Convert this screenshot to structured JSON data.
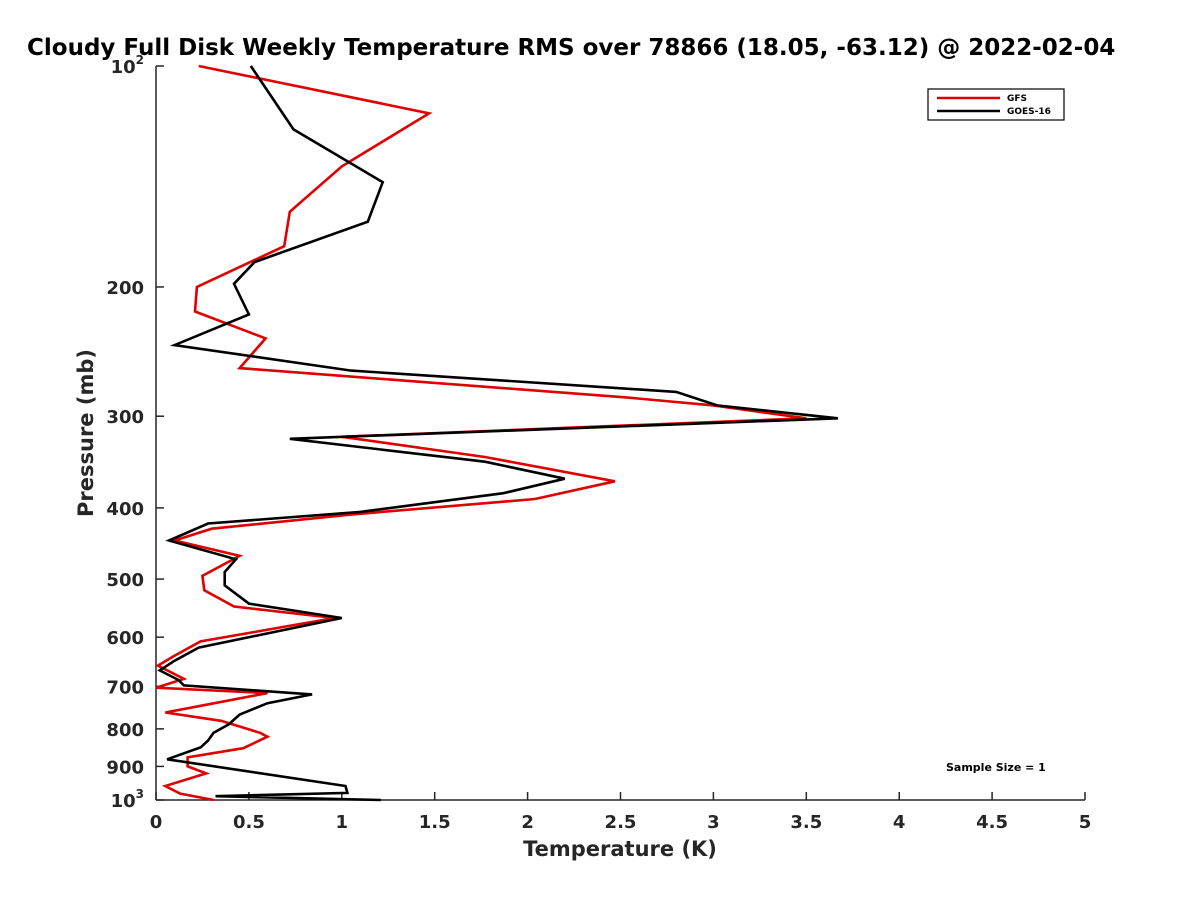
{
  "chart_data": {
    "type": "line",
    "title": "Cloudy Full Disk Weekly Temperature RMS over 78866 (18.05, -63.12) @ 2022-02-04",
    "xlabel": "Temperature (K)",
    "ylabel": "Pressure (mb)",
    "xlim": [
      0,
      5
    ],
    "ylim": [
      100,
      1000
    ],
    "y_scale": "log",
    "y_reversed": true,
    "x_ticks": [
      0,
      0.5,
      1,
      1.5,
      2,
      2.5,
      3,
      3.5,
      4,
      4.5,
      5
    ],
    "x_tick_labels": [
      "0",
      "0.5",
      "1",
      "1.5",
      "2",
      "2.5",
      "3",
      "3.5",
      "4",
      "4.5",
      "5"
    ],
    "y_ticks": [
      {
        "value": 100,
        "label": "10",
        "sup": "2"
      },
      {
        "value": 200,
        "label": "200",
        "sup": ""
      },
      {
        "value": 300,
        "label": "300",
        "sup": ""
      },
      {
        "value": 400,
        "label": "400",
        "sup": ""
      },
      {
        "value": 500,
        "label": "500",
        "sup": ""
      },
      {
        "value": 600,
        "label": "600",
        "sup": ""
      },
      {
        "value": 700,
        "label": "700",
        "sup": ""
      },
      {
        "value": 800,
        "label": "800",
        "sup": ""
      },
      {
        "value": 900,
        "label": "900",
        "sup": ""
      },
      {
        "value": 1000,
        "label": "10",
        "sup": "3"
      }
    ],
    "legend_position": "top-right",
    "annotation": "Sample Size = 1",
    "series": [
      {
        "name": "GFS",
        "color": "#e00000",
        "points": [
          [
            0.23,
            100
          ],
          [
            1.47,
            116
          ],
          [
            1.0,
            137
          ],
          [
            0.72,
            158
          ],
          [
            0.69,
            176
          ],
          [
            0.22,
            200
          ],
          [
            0.21,
            216
          ],
          [
            0.59,
            235
          ],
          [
            0.45,
            258
          ],
          [
            2.54,
            283
          ],
          [
            3.0,
            290
          ],
          [
            3.5,
            302
          ],
          [
            1.0,
            320
          ],
          [
            1.77,
            341
          ],
          [
            2.47,
            368
          ],
          [
            2.04,
            389
          ],
          [
            1.07,
            408
          ],
          [
            0.3,
            427
          ],
          [
            0.1,
            443
          ],
          [
            0.45,
            465
          ],
          [
            0.25,
            495
          ],
          [
            0.26,
            518
          ],
          [
            0.42,
            545
          ],
          [
            0.96,
            565
          ],
          [
            0.24,
            608
          ],
          [
            0.09,
            638
          ],
          [
            0.01,
            656
          ],
          [
            0.15,
            684
          ],
          [
            0.0,
            703
          ],
          [
            0.6,
            715
          ],
          [
            0.23,
            745
          ],
          [
            0.05,
            760
          ],
          [
            0.35,
            780
          ],
          [
            0.56,
            810
          ],
          [
            0.6,
            820
          ],
          [
            0.47,
            850
          ],
          [
            0.17,
            875
          ],
          [
            0.17,
            900
          ],
          [
            0.27,
            920
          ],
          [
            0.05,
            957
          ],
          [
            0.13,
            980
          ],
          [
            0.31,
            1000
          ]
        ]
      },
      {
        "name": "GOES-16",
        "color": "#000000",
        "points": [
          [
            0.51,
            100
          ],
          [
            0.74,
            122
          ],
          [
            1.22,
            144
          ],
          [
            1.14,
            163
          ],
          [
            0.53,
            185
          ],
          [
            0.42,
            198
          ],
          [
            0.5,
            218
          ],
          [
            0.1,
            240
          ],
          [
            1.05,
            260
          ],
          [
            2.8,
            278
          ],
          [
            3.02,
            290
          ],
          [
            3.67,
            302
          ],
          [
            0.72,
            322
          ],
          [
            1.77,
            346
          ],
          [
            2.2,
            365
          ],
          [
            1.87,
            382
          ],
          [
            1.1,
            405
          ],
          [
            0.28,
            420
          ],
          [
            0.07,
            443
          ],
          [
            0.43,
            470
          ],
          [
            0.37,
            489
          ],
          [
            0.37,
            510
          ],
          [
            0.5,
            540
          ],
          [
            1.0,
            565
          ],
          [
            0.23,
            620
          ],
          [
            0.1,
            646
          ],
          [
            0.02,
            666
          ],
          [
            0.12,
            686
          ],
          [
            0.15,
            698
          ],
          [
            0.84,
            718
          ],
          [
            0.6,
            738
          ],
          [
            0.45,
            765
          ],
          [
            0.39,
            789
          ],
          [
            0.31,
            810
          ],
          [
            0.28,
            830
          ],
          [
            0.24,
            848
          ],
          [
            0.06,
            880
          ],
          [
            1.02,
            957
          ],
          [
            1.03,
            978
          ],
          [
            0.32,
            988
          ],
          [
            1.21,
            1000
          ]
        ]
      }
    ]
  }
}
